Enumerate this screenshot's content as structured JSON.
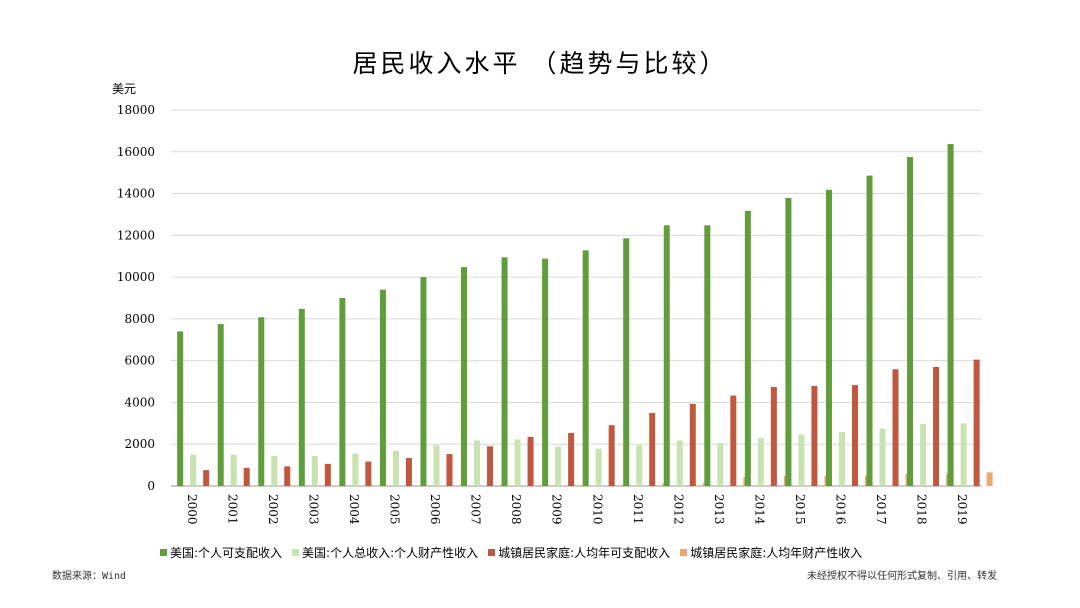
{
  "title": "居民收入水平 （趋势与比较）",
  "footer": {
    "source": "数据来源：Wind",
    "notice": "未经授权不得以任何形式复制、引用、转发"
  },
  "chart_data": {
    "type": "bar",
    "title": "居民收入水平 （趋势与比较）",
    "ylabel": "美元",
    "xlabel": "",
    "ylim": [
      0,
      18000
    ],
    "yticks": [
      0,
      2000,
      4000,
      6000,
      8000,
      10000,
      12000,
      14000,
      16000,
      18000
    ],
    "grid": true,
    "legend_position": "bottom",
    "categories": [
      "2000",
      "2001",
      "2002",
      "2003",
      "2004",
      "2005",
      "2006",
      "2007",
      "2008",
      "2009",
      "2010",
      "2011",
      "2012",
      "2013",
      "2014",
      "2015",
      "2016",
      "2017",
      "2018",
      "2019"
    ],
    "series": [
      {
        "name": "美国:个人可支配收入",
        "color": "#5f9e3a",
        "values": [
          7400,
          7750,
          8080,
          8480,
          9000,
          9400,
          10000,
          10480,
          10950,
          10880,
          11280,
          11860,
          12480,
          12480,
          13170,
          13790,
          14180,
          14860,
          15750,
          16370
        ]
      },
      {
        "name": "美国:个人总收入:个人财产性收入",
        "color": "#c8e2b0",
        "values": [
          1500,
          1500,
          1440,
          1440,
          1550,
          1680,
          1950,
          2180,
          2230,
          1890,
          1780,
          1950,
          2180,
          2050,
          2300,
          2470,
          2580,
          2750,
          2980,
          3000
        ]
      },
      {
        "name": "城镇居民家庭:人均年可支配收入",
        "color": "#c0573f",
        "values": [
          760,
          870,
          940,
          1060,
          1170,
          1340,
          1530,
          1900,
          2350,
          2540,
          2910,
          3500,
          3930,
          4330,
          4740,
          4790,
          4830,
          5590,
          5700,
          6050
        ]
      },
      {
        "name": "城镇居民家庭:人均年财产性收入",
        "color": "#e8a870",
        "values": [
          15,
          20,
          25,
          30,
          35,
          40,
          50,
          70,
          50,
          50,
          60,
          120,
          140,
          430,
          480,
          500,
          500,
          600,
          600,
          650
        ]
      }
    ]
  }
}
